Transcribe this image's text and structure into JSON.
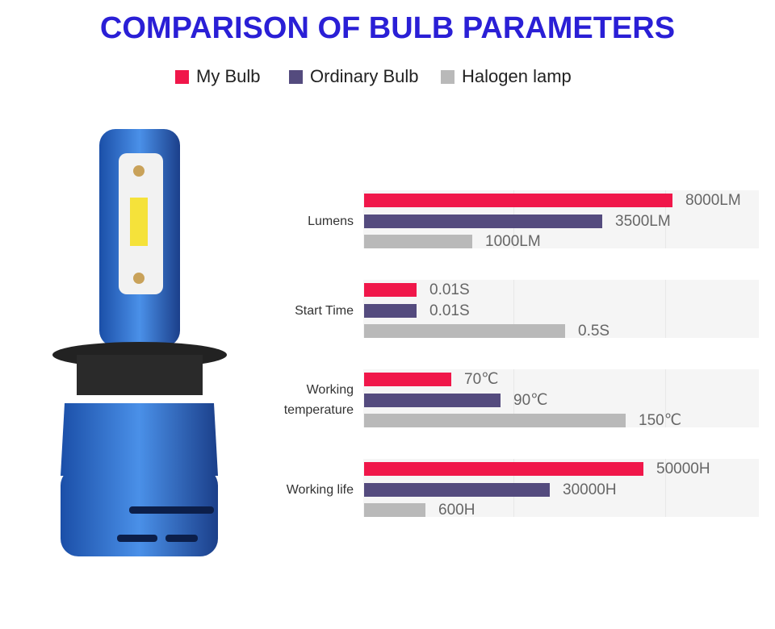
{
  "title": "COMPARISON OF BULB PARAMETERS",
  "legend": [
    {
      "label": "My Bulb",
      "color": "#f0174a"
    },
    {
      "label": "Ordinary Bulb",
      "color": "#544b7e"
    },
    {
      "label": "Halogen lamp",
      "color": "#b9b9b9"
    }
  ],
  "groups": [
    {
      "label": "Lumens",
      "items": [
        "8000LM",
        "3500LM",
        "1000LM"
      ]
    },
    {
      "label": "Start Time",
      "items": [
        "0.01S",
        "0.01S",
        "0.5S"
      ]
    },
    {
      "label": "Working temperature",
      "items": [
        "70℃",
        "90℃",
        "150℃"
      ]
    },
    {
      "label": "Working life",
      "items": [
        "50000H",
        "30000H",
        "600H"
      ]
    }
  ]
}
